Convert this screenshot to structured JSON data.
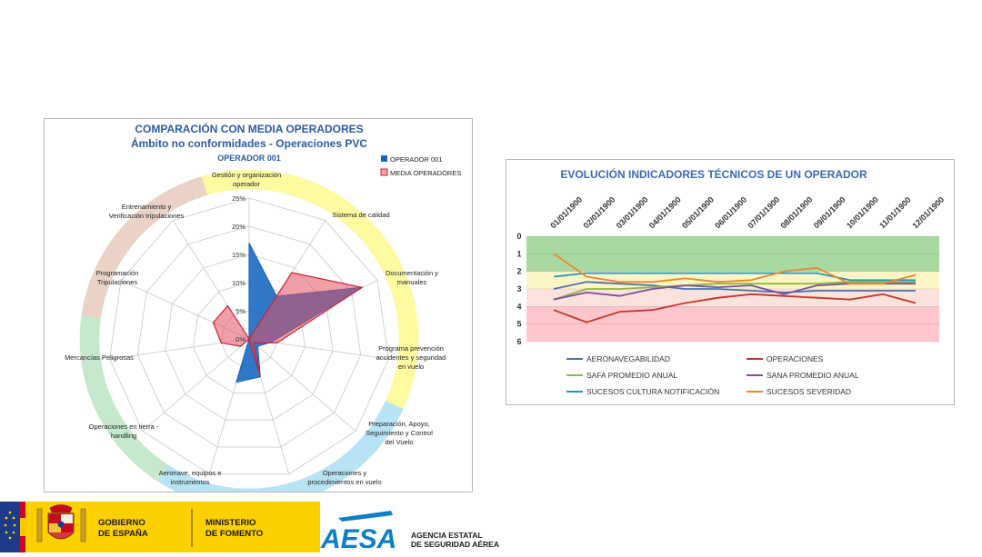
{
  "colors": {
    "operator": "#1565c0",
    "average": "#e05060",
    "ring_yellow": "#fdfaa0",
    "ring_pink": "#ead3c6",
    "ring_green": "#c6e9cd",
    "ring_blue": "#b8e3f5",
    "line_title": "#3a6bb0",
    "radar_title": "#2c5aa0"
  },
  "radar": {
    "title": "COMPARACIÓN CON MEDIA OPERADORES",
    "subtitle": "Ámbito no conformidades - Operaciones PVC",
    "operator_label": "OPERADOR 001",
    "legend": [
      "OPERADOR 001",
      "MEDIA OPERADORES"
    ]
  },
  "chart_data": [
    {
      "type": "radar",
      "title": "COMPARACIÓN CON MEDIA OPERADORES",
      "subtitle": "Ámbito no conformidades - Operaciones PVC",
      "categories": [
        "Gestión y organización operador",
        "Sistema de calidad",
        "Documentación y manuales",
        "Programa prevención accidentes y seguridad en vuelo",
        "Preparación, Apoyo, Seguimiento y Control del Vuelo",
        "Operaciones y procedimientos en vuelo",
        "Aeronave, equipos e instrumentos",
        "Operaciones en tierra - handling",
        "Mercancías Peligrosas",
        "Programación Tripulaciones",
        "Entrenamiento y Verificación tripulaciones"
      ],
      "series": [
        {
          "name": "OPERADOR 001",
          "values": [
            17,
            9,
            22,
            4,
            2,
            7,
            8,
            0,
            0,
            0,
            0
          ]
        },
        {
          "name": "MEDIA OPERADORES",
          "values": [
            0,
            14,
            22,
            5,
            1,
            7,
            0,
            2,
            5,
            7,
            7
          ]
        }
      ],
      "r_ticks": [
        "0%",
        "5%",
        "10%",
        "15%",
        "20%",
        "25%"
      ],
      "rlim": [
        0,
        25
      ]
    },
    {
      "type": "line",
      "title": "EVOLUCIÓN INDICADORES TÉCNICOS DE UN OPERADOR",
      "x": [
        "01/01/1900",
        "02/01/1900",
        "03/01/1900",
        "04/01/1900",
        "05/01/1900",
        "06/01/1900",
        "07/01/1900",
        "08/01/1900",
        "09/01/1900",
        "10/01/1900",
        "11/01/1900",
        "12/01/1900"
      ],
      "y_ticks": [
        "0",
        "1",
        "2",
        "3",
        "4",
        "5",
        "6"
      ],
      "ylim": [
        0,
        6
      ],
      "y_inverted": true,
      "bands": [
        {
          "from": 0,
          "to": 2,
          "color": "#a8d9a0"
        },
        {
          "from": 2,
          "to": 3,
          "color": "#fbf4c5"
        },
        {
          "from": 3,
          "to": 4,
          "color": "#fbe2dc"
        },
        {
          "from": 4,
          "to": 6,
          "color": "#ffc6cc"
        }
      ],
      "series": [
        {
          "name": "AERONAVEGABILIDAD",
          "color": "#4a70b4",
          "values": [
            3.0,
            2.6,
            2.7,
            2.8,
            3.0,
            3.0,
            3.1,
            3.2,
            3.1,
            3.1,
            3.1,
            3.1
          ]
        },
        {
          "name": "OPERACIONES",
          "color": "#c0392b",
          "values": [
            4.2,
            4.9,
            4.3,
            4.2,
            3.8,
            3.5,
            3.3,
            3.4,
            3.5,
            3.6,
            3.3,
            3.8
          ]
        },
        {
          "name": "SAFA PROMEDIO ANUAL",
          "color": "#8db83f",
          "values": [
            3.6,
            3.0,
            3.0,
            2.9,
            2.8,
            2.7,
            2.7,
            2.7,
            2.7,
            2.6,
            2.6,
            2.6
          ]
        },
        {
          "name": "SANA PROMEDIO ANUAL",
          "color": "#7b4fa0",
          "values": [
            3.6,
            3.2,
            3.4,
            3.0,
            2.8,
            2.9,
            2.8,
            3.3,
            2.8,
            2.7,
            2.7,
            2.7
          ]
        },
        {
          "name": "SUCESOS CULTURA NOTIFICACIÓN",
          "color": "#2596be",
          "values": [
            2.3,
            2.1,
            2.1,
            2.1,
            2.1,
            2.1,
            2.1,
            2.1,
            2.1,
            2.5,
            2.5,
            2.5
          ]
        },
        {
          "name": "SUCESOS SEVERIDAD",
          "color": "#e8892e",
          "values": [
            1.0,
            2.3,
            2.6,
            2.6,
            2.4,
            2.6,
            2.5,
            2.0,
            1.8,
            2.7,
            2.7,
            2.2
          ]
        }
      ]
    }
  ],
  "footer": {
    "gobierno": [
      "GOBIERNO",
      "DE ESPAÑA"
    ],
    "ministerio": [
      "MINISTERIO",
      "DE FOMENTO"
    ],
    "aesa_logo": "AESA",
    "aesa_name": [
      "AGENCIA ESTATAL",
      "DE SEGURIDAD AÉREA"
    ],
    "colors": {
      "yellow": "#fdd000",
      "eu_blue": "#1e3a8a",
      "aesa_blue": "#0d7fc4"
    }
  }
}
